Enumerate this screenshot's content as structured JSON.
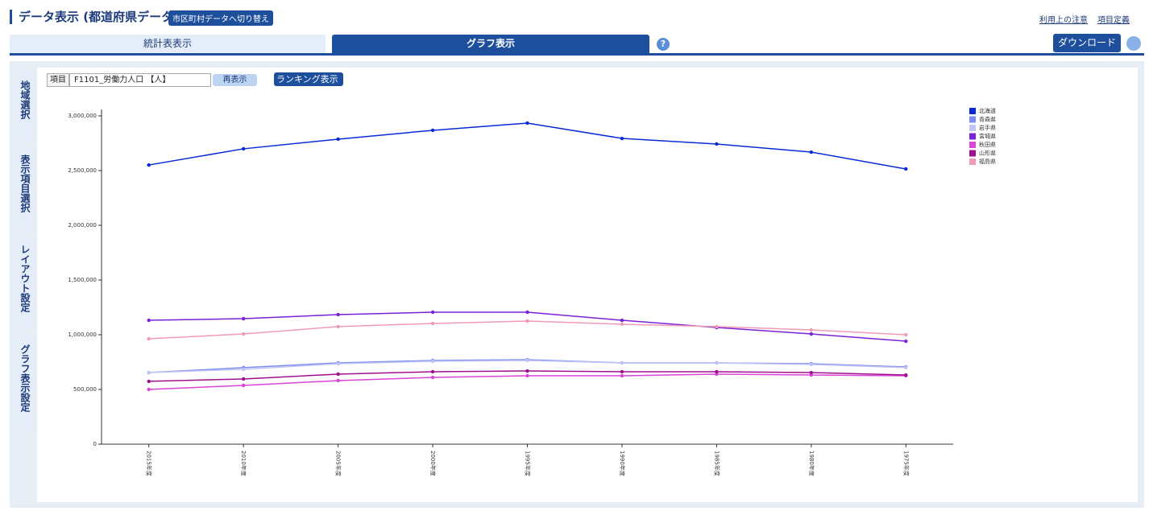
{
  "header": {
    "title": "データ表示 (都道府県データ)",
    "switch_button": "市区町村データへ切り替え",
    "links": [
      "利用上の注意",
      "項目定義"
    ]
  },
  "tabs": [
    "統計表表示",
    "グラフ表示"
  ],
  "help": "?",
  "download": "ダウンロード",
  "side_tabs": [
    "地域選択",
    "表示項目選択",
    "レイアウト設定",
    "グラフ表示設定"
  ],
  "controls": {
    "item_label": "項目",
    "item_select": "F1101_労働力人口 【人】",
    "redraw": "再表示",
    "ranking": "ランキング表示"
  },
  "chart_data": {
    "type": "line",
    "categories": [
      "2015年度",
      "2010年度",
      "2005年度",
      "2000年度",
      "1995年度",
      "1990年度",
      "1985年度",
      "1980年度",
      "1975年度"
    ],
    "ylim": [
      0,
      3000000
    ],
    "yticks": [
      0,
      {
        "value": 500000,
        "label": "500,000"
      },
      {
        "value": 1000000,
        "label": "1,000,000"
      },
      {
        "value": 1500000,
        "label": "1,500,000"
      },
      {
        "value": 2000000,
        "label": "2,000,000"
      },
      {
        "value": 2500000,
        "label": "2,500,000"
      },
      {
        "value": 3000000,
        "label": "3,000,000"
      }
    ],
    "legend": "top-right",
    "series": [
      {
        "name": "北海道",
        "color": "#0a2bd6",
        "values": [
          2551000,
          2699000,
          2787000,
          2868000,
          2934000,
          2794000,
          2743000,
          2669000,
          2515000
        ]
      },
      {
        "name": "青森県",
        "color": "#7b8cf0",
        "values": [
          654000,
          699000,
          743000,
          765000,
          772000,
          743000,
          743000,
          735000,
          706000
        ]
      },
      {
        "name": "岩手県",
        "color": "#c0c4f4",
        "values": [
          654000,
          684000,
          735000,
          757000,
          765000,
          743000,
          743000,
          728000,
          699000
        ]
      },
      {
        "name": "宮城県",
        "color": "#7a22d8",
        "values": [
          1132000,
          1147000,
          1184000,
          1206000,
          1206000,
          1132000,
          1066000,
          1007000,
          941000
        ]
      },
      {
        "name": "秋田県",
        "color": "#d945d6",
        "values": [
          500000,
          537000,
          581000,
          610000,
          625000,
          625000,
          640000,
          632000,
          625000
        ]
      },
      {
        "name": "山形県",
        "color": "#a0108e",
        "values": [
          574000,
          596000,
          640000,
          662000,
          669000,
          662000,
          662000,
          654000,
          632000
        ]
      },
      {
        "name": "福島県",
        "color": "#f09ab8",
        "values": [
          963000,
          1007000,
          1074000,
          1103000,
          1125000,
          1096000,
          1074000,
          1044000,
          1000000
        ]
      }
    ]
  }
}
